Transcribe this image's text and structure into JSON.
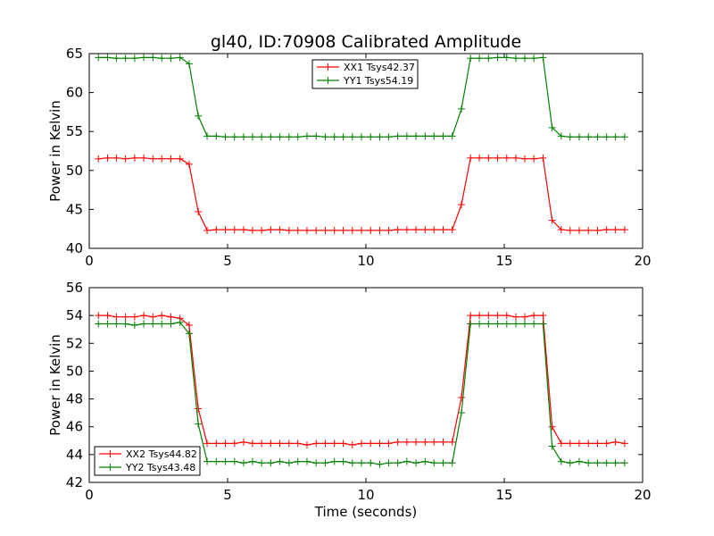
{
  "chart_data": [
    {
      "type": "line",
      "title": "gl40, ID:70908 Calibrated Amplitude",
      "xlabel": "",
      "ylabel": "Power in Kelvin",
      "xlim": [
        0,
        20
      ],
      "ylim": [
        40,
        65
      ],
      "xticks": [
        0,
        5,
        10,
        15,
        20
      ],
      "yticks": [
        40,
        45,
        50,
        55,
        60,
        65
      ],
      "legend_position": "top-center",
      "x": [
        0.33,
        0.66,
        0.98,
        1.31,
        1.64,
        1.97,
        2.3,
        2.62,
        2.95,
        3.28,
        3.61,
        3.94,
        4.26,
        4.59,
        4.92,
        5.25,
        5.58,
        5.9,
        6.23,
        6.56,
        6.89,
        7.22,
        7.54,
        7.87,
        8.2,
        8.53,
        8.86,
        9.18,
        9.51,
        9.84,
        10.17,
        10.5,
        10.82,
        11.15,
        11.48,
        11.81,
        12.14,
        12.46,
        12.79,
        13.12,
        13.45,
        13.78,
        14.1,
        14.43,
        14.76,
        15.09,
        15.42,
        15.74,
        16.07,
        16.4,
        16.73,
        17.06,
        17.38,
        17.71,
        18.04,
        18.37,
        18.7,
        19.02,
        19.35
      ],
      "series": [
        {
          "name": "XX1 Tsys42.37",
          "color": "#ff0000",
          "values": [
            51.5,
            51.6,
            51.6,
            51.5,
            51.6,
            51.6,
            51.5,
            51.5,
            51.5,
            51.5,
            50.8,
            44.7,
            42.3,
            42.4,
            42.4,
            42.4,
            42.4,
            42.3,
            42.3,
            42.4,
            42.4,
            42.3,
            42.3,
            42.3,
            42.3,
            42.3,
            42.3,
            42.3,
            42.3,
            42.3,
            42.3,
            42.3,
            42.3,
            42.4,
            42.4,
            42.4,
            42.4,
            42.4,
            42.4,
            42.4,
            45.6,
            51.6,
            51.6,
            51.6,
            51.6,
            51.6,
            51.6,
            51.5,
            51.5,
            51.6,
            43.6,
            42.4,
            42.3,
            42.3,
            42.3,
            42.3,
            42.4,
            42.4,
            42.4
          ]
        },
        {
          "name": "YY1 Tsys54.19",
          "color": "#008000",
          "values": [
            64.5,
            64.5,
            64.4,
            64.4,
            64.4,
            64.5,
            64.5,
            64.4,
            64.4,
            64.5,
            63.7,
            57.0,
            54.4,
            54.4,
            54.3,
            54.3,
            54.3,
            54.3,
            54.3,
            54.3,
            54.3,
            54.3,
            54.3,
            54.4,
            54.4,
            54.3,
            54.3,
            54.3,
            54.3,
            54.3,
            54.3,
            54.3,
            54.3,
            54.4,
            54.4,
            54.4,
            54.4,
            54.4,
            54.4,
            54.4,
            57.9,
            64.4,
            64.4,
            64.4,
            64.5,
            64.5,
            64.4,
            64.4,
            64.4,
            64.5,
            55.5,
            54.4,
            54.3,
            54.3,
            54.3,
            54.3,
            54.3,
            54.3,
            54.3
          ]
        }
      ]
    },
    {
      "type": "line",
      "title": "",
      "xlabel": "Time (seconds)",
      "ylabel": "Power in Kelvin",
      "xlim": [
        0,
        20
      ],
      "ylim": [
        42,
        56
      ],
      "xticks": [
        0,
        5,
        10,
        15,
        20
      ],
      "yticks": [
        42,
        44,
        46,
        48,
        50,
        52,
        54,
        56
      ],
      "legend_position": "bottom-left",
      "x": [
        0.33,
        0.66,
        0.98,
        1.31,
        1.64,
        1.97,
        2.3,
        2.62,
        2.95,
        3.28,
        3.61,
        3.94,
        4.26,
        4.59,
        4.92,
        5.25,
        5.58,
        5.9,
        6.23,
        6.56,
        6.89,
        7.22,
        7.54,
        7.87,
        8.2,
        8.53,
        8.86,
        9.18,
        9.51,
        9.84,
        10.17,
        10.5,
        10.82,
        11.15,
        11.48,
        11.81,
        12.14,
        12.46,
        12.79,
        13.12,
        13.45,
        13.78,
        14.1,
        14.43,
        14.76,
        15.09,
        15.42,
        15.74,
        16.07,
        16.4,
        16.73,
        17.06,
        17.38,
        17.71,
        18.04,
        18.37,
        18.7,
        19.02,
        19.35
      ],
      "series": [
        {
          "name": "XX2 Tsys44.82",
          "color": "#ff0000",
          "values": [
            54.0,
            54.0,
            53.9,
            53.9,
            53.9,
            54.0,
            53.9,
            54.0,
            53.9,
            53.8,
            53.3,
            47.3,
            44.8,
            44.8,
            44.8,
            44.8,
            44.9,
            44.8,
            44.8,
            44.8,
            44.8,
            44.8,
            44.8,
            44.7,
            44.8,
            44.8,
            44.8,
            44.8,
            44.7,
            44.8,
            44.8,
            44.8,
            44.8,
            44.9,
            44.9,
            44.9,
            44.9,
            44.9,
            44.9,
            44.9,
            48.1,
            54.0,
            54.0,
            54.0,
            54.0,
            54.0,
            53.9,
            53.9,
            54.0,
            54.0,
            46.0,
            44.8,
            44.8,
            44.8,
            44.8,
            44.8,
            44.8,
            44.9,
            44.8
          ]
        },
        {
          "name": "YY2 Tsys43.48",
          "color": "#008000",
          "values": [
            53.4,
            53.4,
            53.4,
            53.4,
            53.3,
            53.4,
            53.4,
            53.4,
            53.4,
            53.5,
            52.7,
            46.2,
            43.5,
            43.5,
            43.5,
            43.5,
            43.4,
            43.5,
            43.4,
            43.4,
            43.5,
            43.4,
            43.5,
            43.5,
            43.4,
            43.4,
            43.5,
            43.5,
            43.4,
            43.4,
            43.4,
            43.3,
            43.4,
            43.4,
            43.5,
            43.4,
            43.5,
            43.4,
            43.4,
            43.4,
            47.0,
            53.4,
            53.4,
            53.4,
            53.4,
            53.4,
            53.4,
            53.4,
            53.4,
            53.4,
            44.6,
            43.5,
            43.4,
            43.5,
            43.4,
            43.4,
            43.4,
            43.4,
            43.4
          ]
        }
      ]
    }
  ]
}
